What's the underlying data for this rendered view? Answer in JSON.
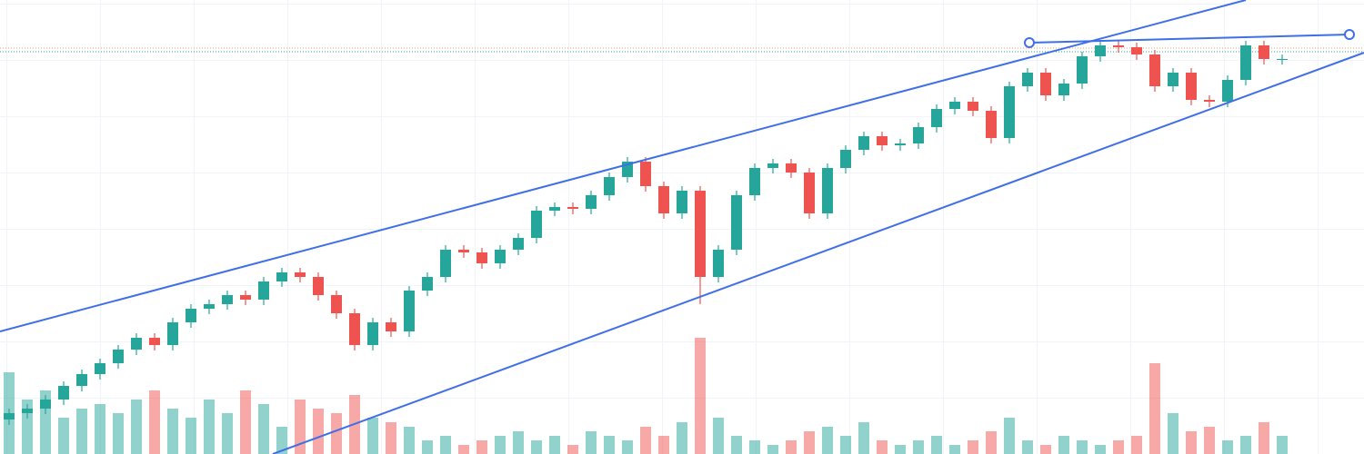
{
  "chart_data": {
    "type": "candlestick",
    "xlim": [
      -0.5,
      74.5
    ],
    "ylim": [
      0,
      500
    ],
    "volume_ylim": [
      0,
      500
    ],
    "up_color": "#26a69a",
    "down_color": "#ef5350",
    "line_color": "#3f6fe8",
    "x": [
      0,
      1,
      2,
      3,
      4,
      5,
      6,
      7,
      8,
      9,
      10,
      11,
      12,
      13,
      14,
      15,
      16,
      17,
      18,
      19,
      20,
      21,
      22,
      23,
      24,
      25,
      26,
      27,
      28,
      29,
      30,
      31,
      32,
      33,
      34,
      35,
      36,
      37,
      38,
      39,
      40,
      41,
      42,
      43,
      44,
      45,
      46,
      47,
      48,
      49,
      50,
      51,
      52,
      53,
      54,
      55,
      56,
      57,
      58,
      59,
      60,
      61,
      62,
      63,
      64,
      65,
      66,
      67,
      68,
      69,
      70
    ],
    "candles": [
      [
        38,
        50,
        32,
        45
      ],
      [
        45,
        55,
        39,
        50
      ],
      [
        50,
        65,
        44,
        60
      ],
      [
        60,
        80,
        54,
        75
      ],
      [
        75,
        93,
        69,
        88
      ],
      [
        88,
        105,
        82,
        100
      ],
      [
        100,
        120,
        94,
        115
      ],
      [
        115,
        133,
        109,
        128
      ],
      [
        128,
        133,
        114,
        120
      ],
      [
        120,
        150,
        114,
        145
      ],
      [
        145,
        165,
        139,
        160
      ],
      [
        160,
        170,
        154,
        165
      ],
      [
        165,
        180,
        159,
        175
      ],
      [
        175,
        180,
        164,
        170
      ],
      [
        170,
        195,
        164,
        190
      ],
      [
        190,
        205,
        184,
        200
      ],
      [
        200,
        205,
        189,
        195
      ],
      [
        195,
        200,
        169,
        175
      ],
      [
        175,
        180,
        149,
        155
      ],
      [
        155,
        160,
        114,
        120
      ],
      [
        120,
        150,
        114,
        145
      ],
      [
        145,
        150,
        129,
        135
      ],
      [
        135,
        185,
        129,
        180
      ],
      [
        180,
        200,
        174,
        195
      ],
      [
        195,
        230,
        189,
        225
      ],
      [
        225,
        230,
        216,
        222
      ],
      [
        222,
        227,
        204,
        210
      ],
      [
        210,
        230,
        204,
        225
      ],
      [
        225,
        243,
        219,
        238
      ],
      [
        238,
        273,
        232,
        268
      ],
      [
        268,
        277,
        262,
        272
      ],
      [
        272,
        277,
        264,
        270
      ],
      [
        270,
        290,
        264,
        285
      ],
      [
        285,
        310,
        279,
        305
      ],
      [
        305,
        327,
        299,
        322
      ],
      [
        322,
        327,
        289,
        295
      ],
      [
        295,
        300,
        259,
        265
      ],
      [
        265,
        295,
        259,
        290
      ],
      [
        290,
        295,
        165,
        195
      ],
      [
        195,
        230,
        189,
        225
      ],
      [
        225,
        290,
        219,
        285
      ],
      [
        285,
        320,
        279,
        315
      ],
      [
        315,
        325,
        309,
        320
      ],
      [
        320,
        325,
        304,
        310
      ],
      [
        310,
        315,
        259,
        265
      ],
      [
        265,
        320,
        259,
        315
      ],
      [
        315,
        340,
        309,
        335
      ],
      [
        335,
        355,
        329,
        350
      ],
      [
        350,
        355,
        334,
        340
      ],
      [
        340,
        347,
        334,
        342
      ],
      [
        342,
        365,
        336,
        360
      ],
      [
        360,
        385,
        354,
        380
      ],
      [
        380,
        393,
        374,
        388
      ],
      [
        388,
        393,
        372,
        378
      ],
      [
        378,
        383,
        342,
        348
      ],
      [
        348,
        410,
        342,
        405
      ],
      [
        405,
        425,
        399,
        420
      ],
      [
        420,
        425,
        389,
        395
      ],
      [
        395,
        413,
        389,
        408
      ],
      [
        408,
        443,
        402,
        438
      ],
      [
        438,
        455,
        432,
        450
      ],
      [
        450,
        455,
        442,
        448
      ],
      [
        448,
        453,
        434,
        440
      ],
      [
        440,
        445,
        399,
        405
      ],
      [
        405,
        425,
        399,
        420
      ],
      [
        420,
        425,
        384,
        390
      ],
      [
        390,
        395,
        382,
        388
      ],
      [
        388,
        417,
        382,
        412
      ],
      [
        412,
        455,
        406,
        450
      ],
      [
        450,
        455,
        429,
        435
      ],
      [
        435,
        440,
        429,
        435
      ]
    ],
    "volume": [
      90,
      60,
      70,
      40,
      50,
      55,
      45,
      60,
      70,
      50,
      40,
      60,
      45,
      70,
      55,
      30,
      60,
      50,
      45,
      65,
      40,
      35,
      30,
      15,
      20,
      10,
      15,
      20,
      25,
      15,
      20,
      10,
      25,
      20,
      15,
      30,
      20,
      35,
      128,
      40,
      20,
      15,
      10,
      15,
      25,
      30,
      20,
      35,
      15,
      10,
      15,
      20,
      10,
      15,
      25,
      40,
      15,
      10,
      20,
      15,
      10,
      15,
      20,
      100,
      45,
      25,
      30,
      15,
      20,
      35,
      20
    ],
    "trendlines": [
      {
        "x": [
          -0.5,
          68
        ],
        "y": [
          135,
          500
        ]
      },
      {
        "x": [
          14.5,
          74.5
        ],
        "y": [
          0,
          442
        ]
      },
      {
        "x": [
          56.1,
          73.7
        ],
        "y": [
          453,
          462
        ],
        "handles": true
      }
    ],
    "price_lines": [
      {
        "value": 447,
        "color": "#f5a35c"
      },
      {
        "value": 443,
        "color": "#26a69a"
      }
    ]
  }
}
